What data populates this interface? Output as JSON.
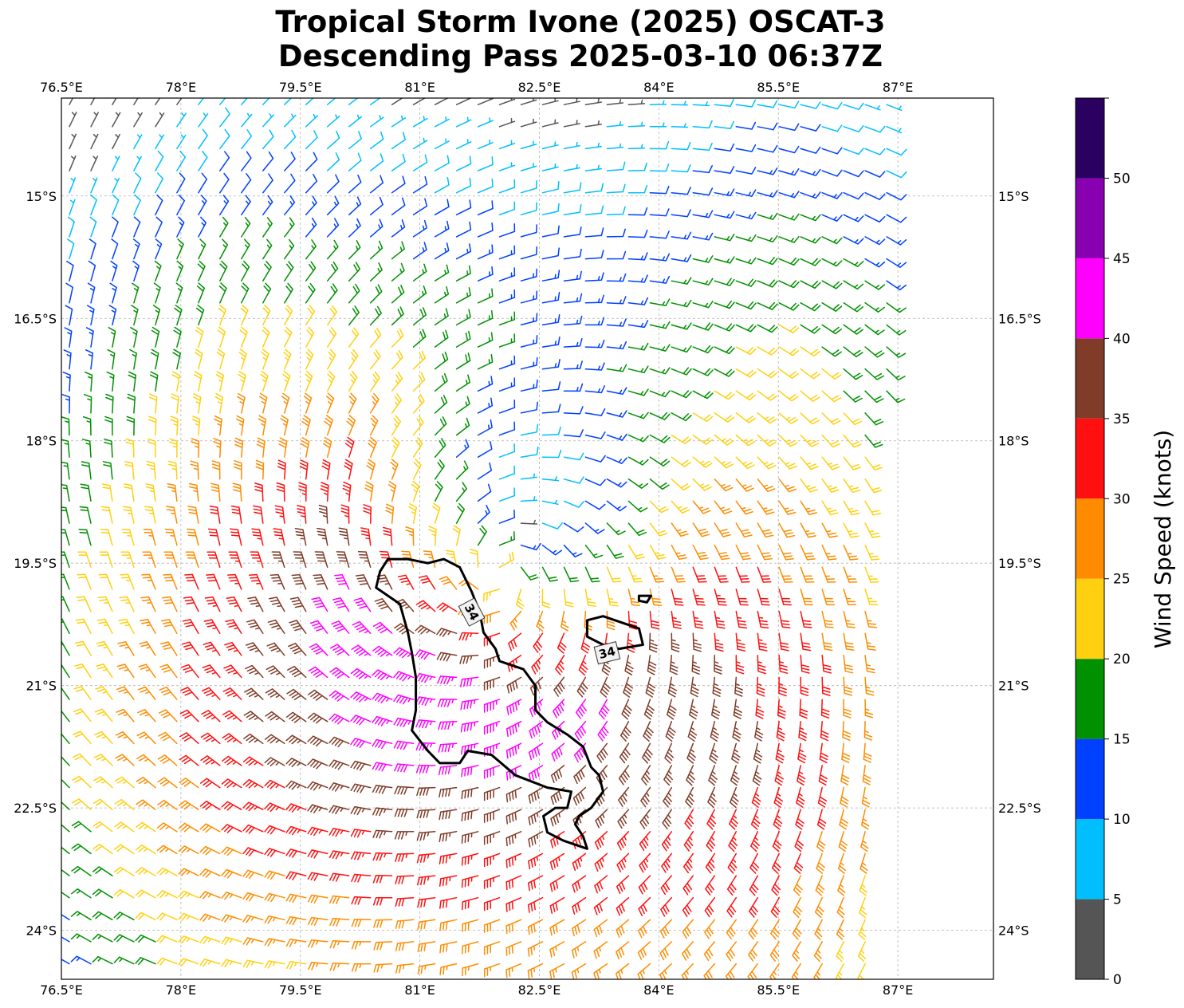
{
  "title": {
    "line1": "Tropical Storm Ivone (2025) OSCAT-3",
    "line2": "Descending Pass 2025-03-10 06:37Z"
  },
  "chart_data": {
    "type": "wind-barb-map",
    "x_axis": {
      "range": [
        76.5,
        88.2
      ],
      "ticks": [
        76.5,
        78,
        79.5,
        81,
        82.5,
        84,
        85.5,
        87
      ],
      "tick_labels": [
        "76.5°E",
        "78°E",
        "79.5°E",
        "81°E",
        "82.5°E",
        "84°E",
        "85.5°E",
        "87°E"
      ]
    },
    "y_axis": {
      "range": [
        -24.6,
        -13.8
      ],
      "ticks": [
        -15,
        -16.5,
        -18,
        -19.5,
        -21,
        -22.5,
        -24
      ],
      "tick_labels": [
        "15°S",
        "16.5°S",
        "18°S",
        "19.5°S",
        "21°S",
        "22.5°S",
        "24°S"
      ]
    },
    "grid": true,
    "center": {
      "lon": 82.2,
      "lat": -19.1
    },
    "swath": {
      "west_edge_lon": 76.5,
      "east_edge_lon_north": 87.0,
      "east_edge_lon_south": 86.6
    },
    "contour": {
      "level": 34,
      "label": "34",
      "polygons": [
        [
          [
            80.85,
            -19.45
          ],
          [
            81.1,
            -19.5
          ],
          [
            81.3,
            -19.45
          ],
          [
            81.5,
            -19.55
          ],
          [
            81.65,
            -19.85
          ],
          [
            81.75,
            -20.1
          ],
          [
            81.8,
            -20.35
          ],
          [
            81.95,
            -20.55
          ],
          [
            82.0,
            -20.7
          ],
          [
            82.15,
            -20.75
          ],
          [
            82.3,
            -20.8
          ],
          [
            82.45,
            -21.0
          ],
          [
            82.45,
            -21.3
          ],
          [
            82.6,
            -21.45
          ],
          [
            82.85,
            -21.6
          ],
          [
            83.05,
            -21.75
          ],
          [
            83.15,
            -22.0
          ],
          [
            83.25,
            -22.1
          ],
          [
            83.3,
            -22.3
          ],
          [
            83.15,
            -22.5
          ],
          [
            83.0,
            -22.6
          ],
          [
            82.95,
            -22.7
          ],
          [
            83.05,
            -22.85
          ],
          [
            83.1,
            -23.0
          ],
          [
            82.8,
            -22.9
          ],
          [
            82.6,
            -22.8
          ],
          [
            82.55,
            -22.6
          ],
          [
            82.7,
            -22.5
          ],
          [
            82.85,
            -22.5
          ],
          [
            82.9,
            -22.3
          ],
          [
            82.6,
            -22.25
          ],
          [
            82.2,
            -22.1
          ],
          [
            81.9,
            -21.85
          ],
          [
            81.6,
            -21.8
          ],
          [
            81.5,
            -21.95
          ],
          [
            81.25,
            -21.95
          ],
          [
            81.1,
            -21.8
          ],
          [
            80.9,
            -21.55
          ],
          [
            80.95,
            -21.3
          ],
          [
            80.95,
            -20.9
          ],
          [
            80.9,
            -20.6
          ],
          [
            80.85,
            -20.35
          ],
          [
            80.75,
            -20.0
          ],
          [
            80.45,
            -19.8
          ],
          [
            80.5,
            -19.6
          ],
          [
            80.6,
            -19.45
          ]
        ],
        [
          [
            83.3,
            -20.15
          ],
          [
            83.6,
            -20.25
          ],
          [
            83.75,
            -20.3
          ],
          [
            83.8,
            -20.5
          ],
          [
            83.5,
            -20.55
          ],
          [
            83.3,
            -20.5
          ],
          [
            83.1,
            -20.4
          ],
          [
            83.1,
            -20.2
          ]
        ],
        [
          [
            83.75,
            -19.9
          ],
          [
            83.9,
            -19.9
          ],
          [
            83.85,
            -19.98
          ],
          [
            83.75,
            -19.96
          ]
        ]
      ],
      "labels": [
        {
          "lon": 81.65,
          "lat": -20.1,
          "angle": 62
        },
        {
          "lon": 83.35,
          "lat": -20.6,
          "angle": -14
        }
      ]
    },
    "colorbar": {
      "label": "Wind Speed (knots)",
      "ticks": [
        0,
        5,
        10,
        15,
        20,
        25,
        30,
        35,
        40,
        45,
        50
      ],
      "bins": [
        {
          "min": 0,
          "max": 5,
          "color": "#555555"
        },
        {
          "min": 5,
          "max": 10,
          "color": "#00bfff"
        },
        {
          "min": 10,
          "max": 15,
          "color": "#0040ff"
        },
        {
          "min": 15,
          "max": 20,
          "color": "#009000"
        },
        {
          "min": 20,
          "max": 25,
          "color": "#ffd010"
        },
        {
          "min": 25,
          "max": 30,
          "color": "#ff8c00"
        },
        {
          "min": 30,
          "max": 35,
          "color": "#ff1010"
        },
        {
          "min": 35,
          "max": 40,
          "color": "#803c28"
        },
        {
          "min": 40,
          "max": 45,
          "color": "#ff00ff"
        },
        {
          "min": 45,
          "max": 50,
          "color": "#8800b0"
        },
        {
          "min": 50,
          "max": 55,
          "color": "#2a0060"
        }
      ]
    }
  }
}
